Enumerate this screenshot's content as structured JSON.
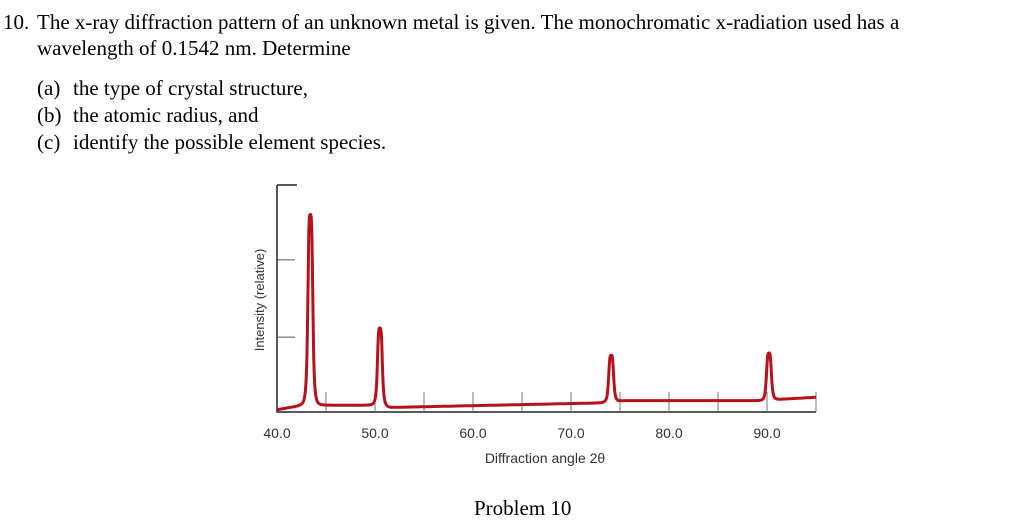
{
  "problem": {
    "number": "10.",
    "line1": "The x-ray diffraction pattern of an unknown metal is given. The monochromatic x-radiation used has a",
    "line2": "wavelength of 0.1542 nm. Determine",
    "parts": [
      {
        "label": "(a)",
        "text": "the type of crystal structure,"
      },
      {
        "label": "(b)",
        "text": "the atomic radius, and"
      },
      {
        "label": "(c)",
        "text": "identify the possible element species."
      }
    ],
    "caption": "Problem 10"
  },
  "chart_data": {
    "type": "line",
    "title": "",
    "xlabel": "Diffraction angle 2θ",
    "ylabel": "Intensity (relative)",
    "xlim": [
      40,
      95
    ],
    "ylim": [
      0,
      100
    ],
    "x_tick_labels": [
      "40.0",
      "50.0",
      "60.0",
      "70.0",
      "80.0",
      "90.0"
    ],
    "x_ticks": [
      40,
      50,
      60,
      70,
      80,
      90
    ],
    "x_minor_ticks": [
      45,
      50,
      55,
      60,
      65,
      70,
      75,
      80,
      85,
      90,
      95
    ],
    "y_ticks": [
      33,
      67
    ],
    "grid": false,
    "line_color": "#b5121b",
    "peaks": [
      {
        "x": 43.4,
        "y": 87
      },
      {
        "x": 50.5,
        "y": 37
      },
      {
        "x": 74.1,
        "y": 25
      },
      {
        "x": 90.2,
        "y": 26
      }
    ],
    "baseline": [
      [
        40,
        1
      ],
      [
        42.7,
        3
      ],
      [
        50,
        3
      ],
      [
        51.5,
        2
      ],
      [
        73,
        4
      ],
      [
        75.5,
        5
      ],
      [
        89.5,
        5
      ],
      [
        91,
        5.5
      ],
      [
        95,
        6.5
      ]
    ]
  }
}
